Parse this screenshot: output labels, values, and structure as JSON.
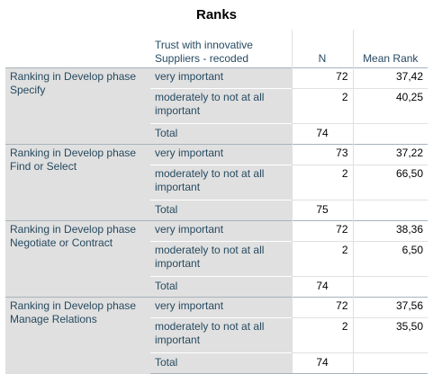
{
  "title": "Ranks",
  "headers": {
    "group": "Trust with innovative Suppliers - recoded",
    "n": "N",
    "mean_rank": "Mean Rank"
  },
  "rows": [
    {
      "label": "Ranking in Develop phase Specify",
      "cat1": "very important",
      "n1": "72",
      "m1": "37,42",
      "cat2": "moderately to not at all important",
      "n2": "2",
      "m2": "40,25",
      "total_label": "Total",
      "total_n": "74"
    },
    {
      "label": "Ranking in Develop phase Find or Select",
      "cat1": "very important",
      "n1": "73",
      "m1": "37,22",
      "cat2": "moderately to not at all important",
      "n2": "2",
      "m2": "66,50",
      "total_label": "Total",
      "total_n": "75"
    },
    {
      "label": "Ranking in Develop phase Negotiate or Contract",
      "cat1": "very important",
      "n1": "72",
      "m1": "38,36",
      "cat2": "moderately to not at all important",
      "n2": "2",
      "m2": "6,50",
      "total_label": "Total",
      "total_n": "74"
    },
    {
      "label": "Ranking in Develop phase Manage Relations",
      "cat1": "very important",
      "n1": "72",
      "m1": "37,56",
      "cat2": "moderately to not at all important",
      "n2": "2",
      "m2": "35,50",
      "total_label": "Total",
      "total_n": "74"
    }
  ]
}
